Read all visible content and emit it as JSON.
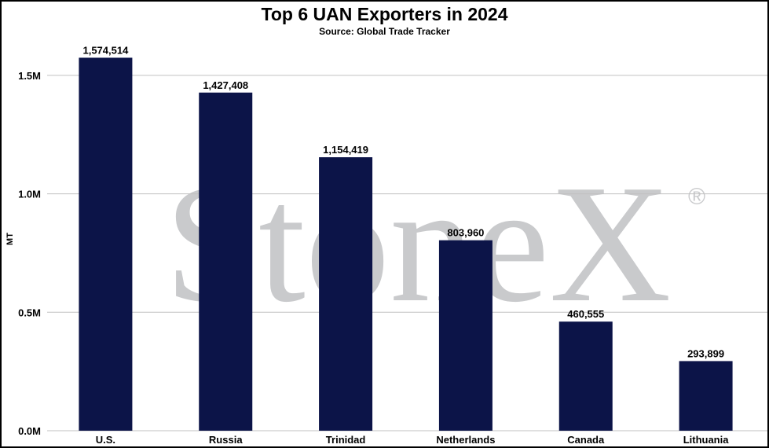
{
  "chart_data": {
    "type": "bar",
    "title": "Top 6 UAN Exporters in 2024",
    "subtitle": "Source: Global Trade Tracker",
    "ylabel": "MT",
    "categories": [
      "U.S.",
      "Russia",
      "Trinidad",
      "Netherlands",
      "Canada",
      "Lithuania"
    ],
    "values": [
      1574514,
      1427408,
      1154419,
      803960,
      460555,
      293899
    ],
    "data_labels": [
      "1,574,514",
      "1,427,408",
      "1,154,419",
      "803,960",
      "460,555",
      "293,899"
    ],
    "ylim": [
      0,
      1650000
    ],
    "yticks": [
      0,
      500000,
      1000000,
      1500000
    ],
    "ytick_labels": [
      "0.0M",
      "0.5M",
      "1.0M",
      "1.5M"
    ],
    "grid": true,
    "bar_color": "#0c1448",
    "grid_color": "#c0c0c0"
  },
  "watermark": {
    "text": "StoneX",
    "mark": "®"
  }
}
